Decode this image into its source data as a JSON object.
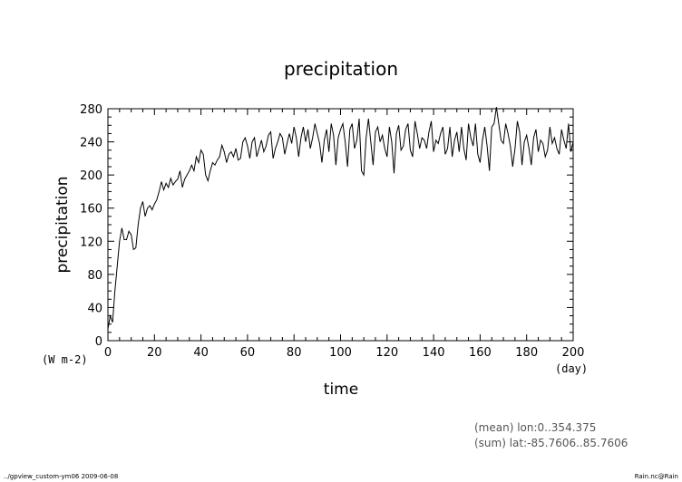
{
  "chart_data": {
    "type": "line",
    "title": "precipitation",
    "xlabel": "time",
    "ylabel": "precipitation",
    "x_unit": "(day)",
    "y_unit": "(W m-2)",
    "xlim": [
      0,
      200
    ],
    "ylim": [
      0,
      280
    ],
    "xticks": [
      "0",
      "20",
      "40",
      "60",
      "80",
      "100",
      "120",
      "140",
      "160",
      "180",
      "200"
    ],
    "yticks": [
      "0",
      "40",
      "80",
      "120",
      "160",
      "200",
      "240",
      "280"
    ],
    "grid": false,
    "legend": "none",
    "series": [
      {
        "x": [
          0,
          1,
          2,
          3,
          4,
          5,
          6,
          7,
          8,
          9,
          10,
          11,
          12,
          13,
          14,
          15,
          16,
          17,
          18,
          19,
          20,
          21,
          22,
          23,
          24,
          25,
          26,
          27,
          28,
          29,
          30,
          31,
          32,
          33,
          34,
          35,
          36,
          37,
          38,
          39,
          40,
          41,
          42,
          43,
          44,
          45,
          46,
          47,
          48,
          49,
          50,
          51,
          52,
          53,
          54,
          55,
          56,
          57,
          58,
          59,
          60,
          61,
          62,
          63,
          64,
          65,
          66,
          67,
          68,
          69,
          70,
          71,
          72,
          73,
          74,
          75,
          76,
          77,
          78,
          79,
          80,
          81,
          82,
          83,
          84,
          85,
          86,
          87,
          88,
          89,
          90,
          91,
          92,
          93,
          94,
          95,
          96,
          97,
          98,
          99,
          100,
          101,
          102,
          103,
          104,
          105,
          106,
          107,
          108,
          109,
          110,
          111,
          112,
          113,
          114,
          115,
          116,
          117,
          118,
          119,
          120,
          121,
          122,
          123,
          124,
          125,
          126,
          127,
          128,
          129,
          130,
          131,
          132,
          133,
          134,
          135,
          136,
          137,
          138,
          139,
          140,
          141,
          142,
          143,
          144,
          145,
          146,
          147,
          148,
          149,
          150,
          151,
          152,
          153,
          154,
          155,
          156,
          157,
          158,
          159,
          160,
          161,
          162,
          163,
          164,
          165,
          166,
          167,
          168,
          169,
          170,
          171,
          172,
          173,
          174,
          175,
          176,
          177,
          178,
          179,
          180,
          181,
          182,
          183,
          184,
          185,
          186,
          187,
          188,
          189,
          190,
          191,
          192,
          193,
          194,
          195,
          196,
          197,
          198,
          199,
          200
        ],
        "values": [
          14,
          30,
          22,
          60,
          90,
          120,
          136,
          122,
          122,
          132,
          128,
          110,
          112,
          140,
          160,
          168,
          150,
          160,
          163,
          158,
          165,
          170,
          180,
          192,
          182,
          190,
          185,
          196,
          188,
          192,
          195,
          205,
          185,
          195,
          200,
          205,
          212,
          205,
          222,
          215,
          230,
          225,
          200,
          193,
          205,
          215,
          212,
          218,
          222,
          236,
          228,
          215,
          225,
          228,
          222,
          232,
          218,
          220,
          240,
          245,
          235,
          220,
          240,
          245,
          222,
          232,
          242,
          228,
          235,
          248,
          252,
          220,
          232,
          240,
          250,
          245,
          225,
          238,
          250,
          238,
          258,
          245,
          222,
          245,
          258,
          240,
          255,
          232,
          245,
          262,
          250,
          238,
          215,
          242,
          255,
          228,
          262,
          248,
          212,
          245,
          255,
          262,
          240,
          210,
          255,
          262,
          232,
          242,
          268,
          205,
          200,
          245,
          268,
          240,
          212,
          252,
          258,
          240,
          248,
          232,
          222,
          258,
          240,
          202,
          250,
          260,
          230,
          235,
          255,
          262,
          230,
          222,
          265,
          250,
          232,
          245,
          242,
          232,
          252,
          265,
          228,
          242,
          238,
          250,
          258,
          225,
          232,
          258,
          222,
          242,
          252,
          228,
          258,
          232,
          218,
          262,
          245,
          235,
          262,
          225,
          215,
          242,
          258,
          235,
          205,
          258,
          262,
          282,
          262,
          242,
          238,
          262,
          250,
          235,
          210,
          232,
          265,
          252,
          212,
          240,
          248,
          232,
          212,
          245,
          255,
          228,
          242,
          238,
          222,
          230,
          258,
          238,
          245,
          232,
          225,
          255,
          242,
          232,
          262,
          228,
          240
        ]
      }
    ]
  },
  "footer": {
    "mean_note": "(mean) lon:0..354.375",
    "sum_note": "(sum) lat:-85.7606..85.7606",
    "left_credit": "../gpview_custom-ym06  2009-06-08",
    "right_credit": "Rain.nc@Rain"
  }
}
